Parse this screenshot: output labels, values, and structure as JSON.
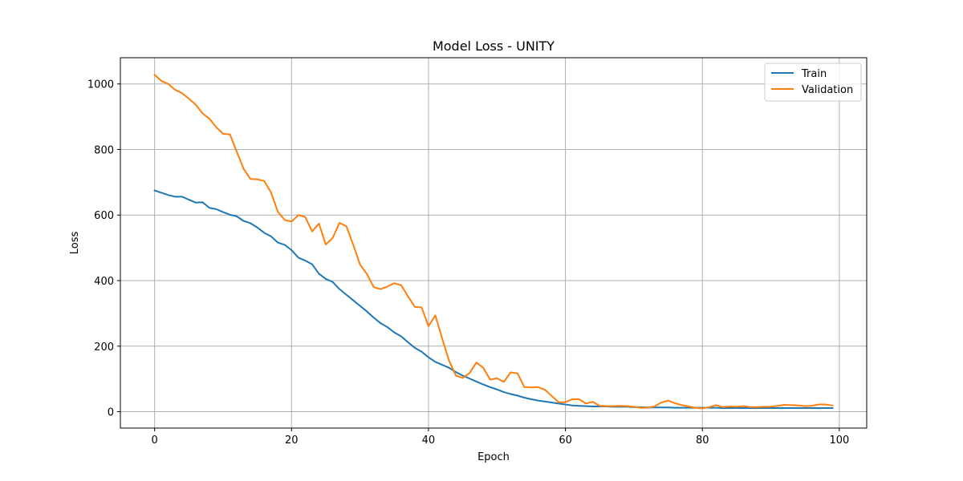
{
  "chart_data": {
    "type": "line",
    "title": "Model Loss - UNITY",
    "xlabel": "Epoch",
    "ylabel": "Loss",
    "xlim": [
      -5,
      104
    ],
    "ylim": [
      -50,
      1080
    ],
    "xticks": [
      0,
      20,
      40,
      60,
      80,
      100
    ],
    "yticks": [
      0,
      200,
      400,
      600,
      800,
      1000
    ],
    "xtick_labels": [
      "0",
      "20",
      "40",
      "60",
      "80",
      "100"
    ],
    "ytick_labels": [
      "0",
      "200",
      "400",
      "600",
      "800",
      "1000"
    ],
    "grid": true,
    "legend_position": "top-right",
    "x": [
      0,
      1,
      2,
      3,
      4,
      5,
      6,
      7,
      8,
      9,
      10,
      11,
      12,
      13,
      14,
      15,
      16,
      17,
      18,
      19,
      20,
      21,
      22,
      23,
      24,
      25,
      26,
      27,
      28,
      29,
      30,
      31,
      32,
      33,
      34,
      35,
      36,
      37,
      38,
      39,
      40,
      41,
      42,
      43,
      44,
      45,
      46,
      47,
      48,
      49,
      50,
      51,
      52,
      53,
      54,
      55,
      56,
      57,
      58,
      59,
      60,
      61,
      62,
      63,
      64,
      65,
      66,
      67,
      68,
      69,
      70,
      71,
      72,
      73,
      74,
      75,
      76,
      77,
      78,
      79,
      80,
      81,
      82,
      83,
      84,
      85,
      86,
      87,
      88,
      89,
      90,
      91,
      92,
      93,
      94,
      95,
      96,
      97,
      98,
      99
    ],
    "series": [
      {
        "name": "Train",
        "color": "#1f77b4",
        "values": [
          675,
          668,
          661,
          656,
          656,
          647,
          638,
          639,
          622,
          618,
          609,
          601,
          596,
          582,
          575,
          562,
          546,
          535,
          516,
          509,
          493,
          470,
          461,
          450,
          421,
          405,
          396,
          374,
          357,
          340,
          323,
          306,
          287,
          270,
          258,
          242,
          230,
          212,
          195,
          183,
          166,
          152,
          143,
          134,
          121,
          110,
          101,
          92,
          83,
          75,
          68,
          60,
          54,
          49,
          43,
          38,
          34,
          31,
          28,
          25,
          22,
          19,
          18,
          17,
          16,
          16,
          16,
          15,
          15,
          15,
          14,
          14,
          13,
          13,
          13,
          13,
          12,
          12,
          12,
          12,
          12,
          12,
          12,
          11,
          11,
          11,
          11,
          11,
          11,
          11,
          11,
          11,
          11,
          11,
          11,
          11,
          11,
          11,
          11,
          11
        ]
      },
      {
        "name": "Validation",
        "color": "#ff7f0e",
        "values": [
          1028,
          1009,
          1000,
          982,
          972,
          955,
          937,
          910,
          894,
          868,
          848,
          846,
          793,
          741,
          710,
          709,
          704,
          669,
          610,
          585,
          580,
          600,
          594,
          550,
          574,
          510,
          530,
          576,
          566,
          510,
          449,
          420,
          380,
          374,
          382,
          392,
          386,
          352,
          320,
          318,
          261,
          294,
          223,
          156,
          110,
          103,
          118,
          150,
          134,
          98,
          102,
          91,
          120,
          117,
          75,
          74,
          75,
          67,
          48,
          29,
          29,
          38,
          38,
          25,
          30,
          18,
          17,
          17,
          18,
          17,
          15,
          12,
          12,
          16,
          28,
          34,
          26,
          20,
          16,
          12,
          10,
          14,
          20,
          14,
          16,
          15,
          17,
          14,
          14,
          15,
          15,
          18,
          21,
          20,
          19,
          17,
          18,
          22,
          22,
          19
        ]
      }
    ]
  }
}
